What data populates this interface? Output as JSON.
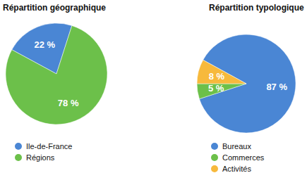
{
  "chart_data": [
    {
      "type": "pie",
      "title": "Répartition géographique",
      "categories": [
        "Ile-de-France",
        "Régions"
      ],
      "values": [
        22,
        78
      ],
      "value_labels": [
        "22 %",
        "78 %"
      ],
      "colors": [
        "#4a86d4",
        "#6cc04a"
      ],
      "data_labels": true,
      "legend": "bottom"
    },
    {
      "type": "pie",
      "title": "Répartition typologique",
      "categories": [
        "Bureaux",
        "Commerces",
        "Activités"
      ],
      "values": [
        87,
        5,
        8
      ],
      "value_labels": [
        "87 %",
        "5 %",
        "8 %"
      ],
      "colors": [
        "#4a86d4",
        "#6cc04a",
        "#f7b93c"
      ],
      "data_labels": true,
      "legend": "bottom"
    }
  ]
}
